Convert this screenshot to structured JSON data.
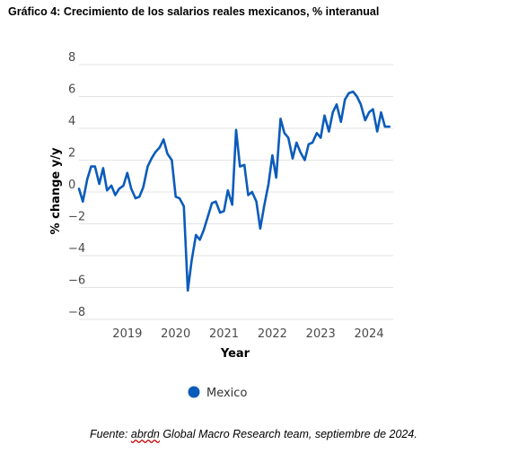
{
  "title": "Gráfico 4: Crecimiento de los salarios reales mexicanos, % interanual",
  "source": {
    "prefix": "Fuente: ",
    "brand": "abrdn",
    "suffix": " Global Macro Research team, septiembre de 2024."
  },
  "chart_data": {
    "type": "line",
    "xlabel": "Year",
    "ylabel": "% change y/y",
    "ylim": [
      -8,
      8
    ],
    "yticks": [
      8,
      6,
      4,
      2,
      0,
      -2,
      -4,
      -6,
      -8
    ],
    "ytick_labels": [
      "8",
      "6",
      "4",
      "2",
      "0",
      "−2",
      "−4",
      "−6",
      "−8"
    ],
    "xticks": [
      {
        "label": "2019",
        "value": 2019.0
      },
      {
        "label": "2020",
        "value": 2020.0
      },
      {
        "label": "2021",
        "value": 2021.0
      },
      {
        "label": "2022",
        "value": 2022.0
      },
      {
        "label": "2023",
        "value": 2023.0
      },
      {
        "label": "2024",
        "value": 2024.0
      }
    ],
    "grid": "horizontal",
    "legend_position": "bottom",
    "series": [
      {
        "name": "Mexico",
        "color": "#0b5cba",
        "x": [
          2018.0,
          2018.08,
          2018.17,
          2018.25,
          2018.33,
          2018.42,
          2018.5,
          2018.58,
          2018.67,
          2018.75,
          2018.83,
          2018.92,
          2019.0,
          2019.08,
          2019.17,
          2019.25,
          2019.33,
          2019.42,
          2019.5,
          2019.58,
          2019.67,
          2019.75,
          2019.83,
          2019.92,
          2020.0,
          2020.08,
          2020.17,
          2020.25,
          2020.33,
          2020.42,
          2020.5,
          2020.58,
          2020.67,
          2020.75,
          2020.83,
          2020.92,
          2021.0,
          2021.08,
          2021.17,
          2021.25,
          2021.33,
          2021.42,
          2021.5,
          2021.58,
          2021.67,
          2021.75,
          2021.83,
          2021.92,
          2022.0,
          2022.08,
          2022.17,
          2022.25,
          2022.33,
          2022.42,
          2022.5,
          2022.58,
          2022.67,
          2022.75,
          2022.83,
          2022.92,
          2023.0,
          2023.08,
          2023.17,
          2023.25,
          2023.33,
          2023.42,
          2023.5,
          2023.58,
          2023.67,
          2023.75,
          2023.83,
          2023.92,
          2024.0,
          2024.08,
          2024.17,
          2024.25,
          2024.33,
          2024.42
        ],
        "values": [
          0.2,
          -0.6,
          0.8,
          1.6,
          1.6,
          0.5,
          1.5,
          0.1,
          0.4,
          -0.2,
          0.2,
          0.4,
          1.2,
          0.2,
          -0.4,
          -0.3,
          0.3,
          1.6,
          2.1,
          2.5,
          2.8,
          3.3,
          2.4,
          2.0,
          -0.3,
          -0.4,
          -0.9,
          -6.2,
          -4.3,
          -2.7,
          -3.0,
          -2.4,
          -1.5,
          -0.7,
          -0.6,
          -1.3,
          -1.2,
          0.1,
          -0.8,
          3.9,
          1.6,
          1.7,
          -0.2,
          0.0,
          -0.6,
          -2.3,
          -0.9,
          0.5,
          2.3,
          0.9,
          4.6,
          3.7,
          3.4,
          2.1,
          3.1,
          2.5,
          2.0,
          3.0,
          3.1,
          3.7,
          3.4,
          4.8,
          3.8,
          5.0,
          5.5,
          4.4,
          5.8,
          6.2,
          6.3,
          6.0,
          5.5,
          4.5,
          5.0,
          5.2,
          3.8,
          5.0,
          4.1,
          4.1
        ]
      }
    ]
  }
}
